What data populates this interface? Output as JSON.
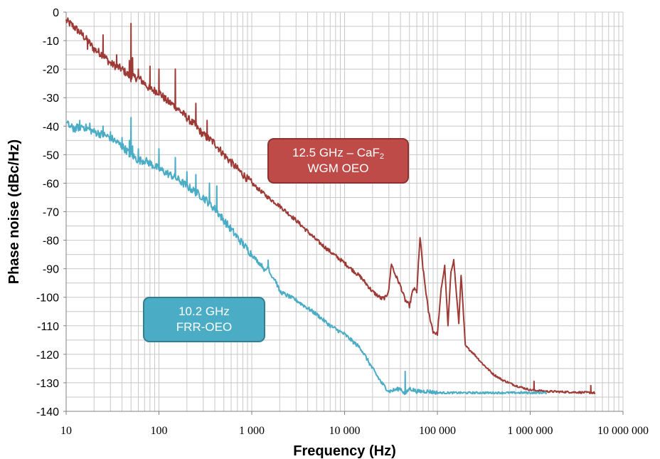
{
  "chart_data": {
    "type": "line",
    "xscale": "log",
    "xlim": [
      10,
      10000000
    ],
    "ylim": [
      -140,
      0
    ],
    "xlabel": "Frequency (Hz)",
    "ylabel": "Phase noise (dBc/Hz)",
    "xticks": [
      "10",
      "100",
      "1 000",
      "10 000",
      "100 000",
      "1 000 000",
      "10 000 000"
    ],
    "yticks": [
      "0",
      "-10",
      "-20",
      "-30",
      "-40",
      "-50",
      "-60",
      "-70",
      "-80",
      "-90",
      "-100",
      "-110",
      "-120",
      "-130",
      "-140"
    ],
    "grid": true,
    "annotations": [
      {
        "text": "12.5 GHz – CaF2 WGM OEO",
        "line1": "12.5 GHz – CaF",
        "sub": "2",
        "line2": "WGM OEO",
        "color": "#be4b48"
      },
      {
        "text": "10.2 GHz FRR-OEO",
        "line1": "10.2 GHz",
        "line2": "FRR-OEO",
        "color": "#4bacc6"
      }
    ],
    "series": [
      {
        "color": "#9e3a35",
        "points": [
          [
            10,
            -3
          ],
          [
            12,
            -5
          ],
          [
            15,
            -8
          ],
          [
            18,
            -11
          ],
          [
            20,
            -13
          ],
          [
            25,
            -15
          ],
          [
            30,
            -18
          ],
          [
            40,
            -20
          ],
          [
            50,
            -23
          ],
          [
            60,
            -23
          ],
          [
            70,
            -25
          ],
          [
            80,
            -27
          ],
          [
            100,
            -28
          ],
          [
            120,
            -31
          ],
          [
            150,
            -33
          ],
          [
            200,
            -37
          ],
          [
            250,
            -40
          ],
          [
            300,
            -43
          ],
          [
            400,
            -46
          ],
          [
            500,
            -50
          ],
          [
            700,
            -55
          ],
          [
            1000,
            -60
          ],
          [
            1500,
            -65
          ],
          [
            2000,
            -68
          ],
          [
            3000,
            -73
          ],
          [
            5000,
            -80
          ],
          [
            7000,
            -84
          ],
          [
            10000,
            -88
          ],
          [
            15000,
            -93
          ],
          [
            20000,
            -98
          ],
          [
            25000,
            -100.5
          ],
          [
            28000,
            -100
          ],
          [
            30000,
            -97
          ],
          [
            32000,
            -88
          ],
          [
            34000,
            -91
          ],
          [
            40000,
            -96
          ],
          [
            45000,
            -101
          ],
          [
            50000,
            -103
          ],
          [
            55000,
            -97
          ],
          [
            60000,
            -98
          ],
          [
            65000,
            -79
          ],
          [
            70000,
            -90
          ],
          [
            80000,
            -105
          ],
          [
            90000,
            -112
          ],
          [
            100000,
            -113
          ],
          [
            110000,
            -97
          ],
          [
            120000,
            -89
          ],
          [
            130000,
            -110
          ],
          [
            140000,
            -91
          ],
          [
            150000,
            -87
          ],
          [
            170000,
            -109
          ],
          [
            180000,
            -92
          ],
          [
            200000,
            -117
          ],
          [
            250000,
            -120
          ],
          [
            300000,
            -123
          ],
          [
            400000,
            -127
          ],
          [
            500000,
            -129
          ],
          [
            700000,
            -131
          ],
          [
            1000000,
            -132.5
          ],
          [
            1500000,
            -133
          ],
          [
            3000000,
            -133.3
          ],
          [
            5000000,
            -133.5
          ]
        ],
        "spikes": [
          [
            17,
            -13
          ],
          [
            25,
            -8
          ],
          [
            35,
            -15
          ],
          [
            48,
            -17
          ],
          [
            50,
            -4
          ],
          [
            52,
            -16
          ],
          [
            60,
            -20
          ],
          [
            80,
            -19
          ],
          [
            100,
            -20
          ],
          [
            150,
            -20
          ],
          [
            250,
            -32
          ],
          [
            330,
            -38
          ],
          [
            1100000,
            -129.5
          ],
          [
            4500000,
            -131
          ]
        ]
      },
      {
        "color": "#4bacc6",
        "points": [
          [
            10,
            -39
          ],
          [
            12,
            -41
          ],
          [
            15,
            -40
          ],
          [
            20,
            -42
          ],
          [
            25,
            -43
          ],
          [
            30,
            -44
          ],
          [
            40,
            -47
          ],
          [
            50,
            -50
          ],
          [
            60,
            -52
          ],
          [
            70,
            -52
          ],
          [
            80,
            -53
          ],
          [
            100,
            -55
          ],
          [
            150,
            -58
          ],
          [
            200,
            -61
          ],
          [
            300,
            -65
          ],
          [
            400,
            -69
          ],
          [
            500,
            -73
          ],
          [
            700,
            -79
          ],
          [
            1000,
            -85
          ],
          [
            1200,
            -88
          ],
          [
            1300,
            -89
          ],
          [
            1400,
            -91
          ],
          [
            1500,
            -89
          ],
          [
            1600,
            -92
          ],
          [
            1800,
            -94
          ],
          [
            2000,
            -98
          ],
          [
            3000,
            -101
          ],
          [
            5000,
            -106
          ],
          [
            7000,
            -110
          ],
          [
            10000,
            -113
          ],
          [
            15000,
            -118
          ],
          [
            20000,
            -125
          ],
          [
            25000,
            -130
          ],
          [
            30000,
            -133
          ],
          [
            40000,
            -132
          ],
          [
            45000,
            -134
          ],
          [
            50000,
            -132
          ],
          [
            60000,
            -133
          ],
          [
            80000,
            -133
          ],
          [
            100000,
            -133.5
          ],
          [
            200000,
            -133.5
          ],
          [
            500000,
            -133.5
          ],
          [
            1000000,
            -133.5
          ],
          [
            1500000,
            -133.5
          ]
        ],
        "spikes": [
          [
            12,
            -40
          ],
          [
            14,
            -38
          ],
          [
            18,
            -39
          ],
          [
            25,
            -40
          ],
          [
            30,
            -42
          ],
          [
            40,
            -44
          ],
          [
            48,
            -45
          ],
          [
            50,
            -37
          ],
          [
            52,
            -47
          ],
          [
            60,
            -48
          ],
          [
            100,
            -48
          ],
          [
            150,
            -51
          ],
          [
            200,
            -56
          ],
          [
            250,
            -57
          ],
          [
            350,
            -60
          ],
          [
            420,
            -61
          ],
          [
            1500,
            -87
          ],
          [
            45000,
            -126
          ]
        ]
      }
    ]
  }
}
